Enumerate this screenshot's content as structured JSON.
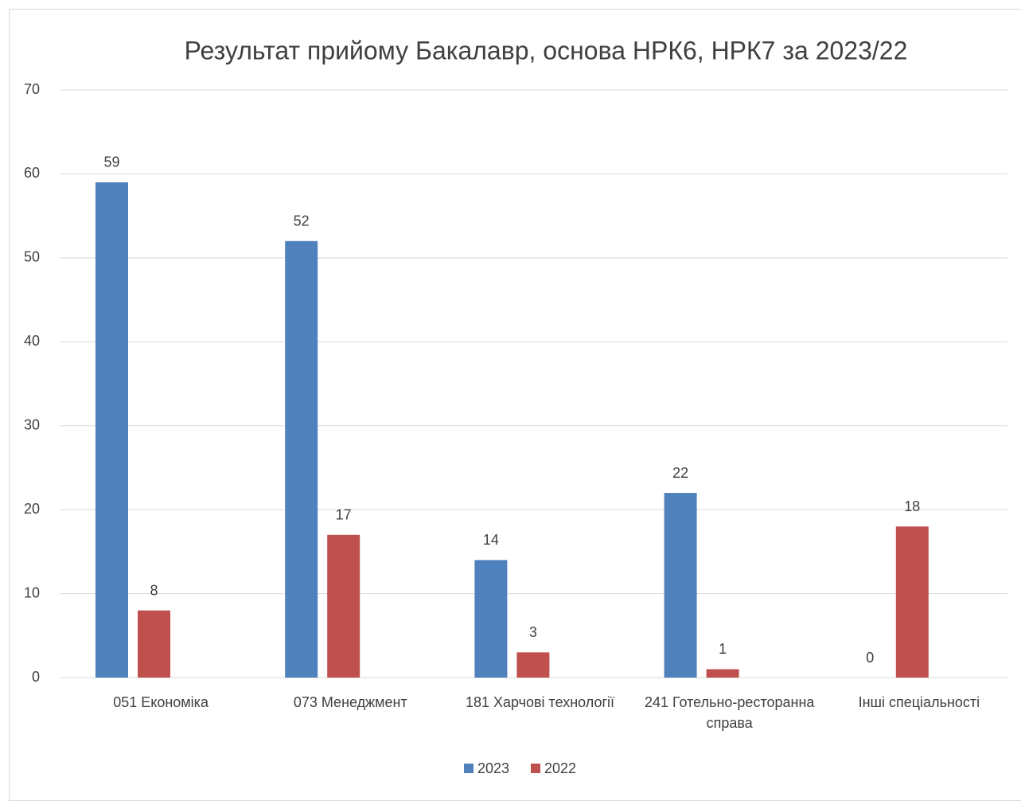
{
  "chart_data": {
    "type": "bar",
    "title": "Результат прийому Бакалавр, основа НРК6, НРК7 за 2023/22",
    "categories": [
      "051 Економіка",
      "073 Менеджмент",
      "181 Харчові технології",
      "241 Готельно-ресторанна справа",
      "Інші спеціальності"
    ],
    "series": [
      {
        "name": "2023",
        "color": "#4f81bd",
        "values": [
          59,
          52,
          14,
          22,
          0
        ]
      },
      {
        "name": "2022",
        "color": "#c0504d",
        "values": [
          8,
          17,
          3,
          1,
          18
        ]
      }
    ],
    "ylim": [
      0,
      70
    ],
    "yticks": [
      0,
      10,
      20,
      30,
      40,
      50,
      60,
      70
    ],
    "grid": true,
    "legend": "bottom"
  }
}
